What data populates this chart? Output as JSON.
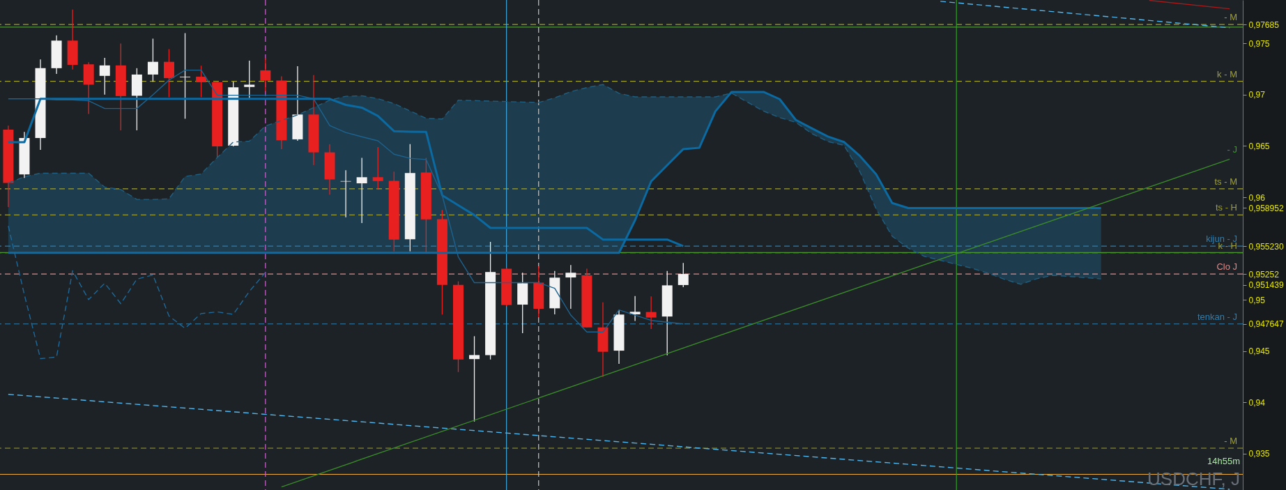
{
  "chart_data": {
    "type": "candlestick",
    "categories": [
      null,
      null,
      null,
      null,
      null,
      null,
      null,
      null,
      null,
      null,
      null,
      null,
      null,
      null,
      null,
      null,
      null,
      null,
      null,
      null,
      null,
      null,
      null,
      null,
      null,
      null,
      null,
      null,
      null,
      null,
      null,
      null,
      null,
      null,
      null,
      null,
      null,
      null,
      null,
      null,
      null,
      null,
      null,
      null,
      null,
      null,
      null,
      null,
      null,
      null,
      null,
      null,
      null,
      null,
      null,
      null,
      null,
      null,
      null,
      null,
      null,
      null,
      null,
      null,
      null,
      null,
      null,
      null,
      null,
      null,
      null,
      null,
      null,
      null,
      null,
      null,
      null
    ],
    "ohlc": [
      [
        0.96659,
        0.96699,
        0.95905,
        0.96139
      ],
      [
        0.96223,
        0.96637,
        0.96188,
        0.96578
      ],
      [
        0.96578,
        0.97345,
        0.96462,
        0.97259
      ],
      [
        0.97259,
        0.97579,
        0.97203,
        0.97528
      ],
      [
        0.97528,
        0.9783,
        0.97246,
        0.97291
      ],
      [
        0.97297,
        0.97318,
        0.96812,
        0.97098
      ],
      [
        0.97184,
        0.97359,
        0.97001,
        0.97286
      ],
      [
        0.97286,
        0.97499,
        0.96653,
        0.96987
      ],
      [
        0.9699,
        0.97259,
        0.96653,
        0.97197
      ],
      [
        0.97197,
        0.97547,
        0.97127,
        0.97321
      ],
      [
        0.97321,
        0.97445,
        0.96976,
        0.97162
      ],
      [
        0.9717,
        0.97601,
        0.96766,
        0.97176
      ],
      [
        0.97176,
        0.97283,
        0.96976,
        0.97122
      ],
      [
        0.97122,
        0.9713,
        0.9639,
        0.96497
      ],
      [
        0.96503,
        0.97127,
        0.96497,
        0.97073
      ],
      [
        0.97076,
        0.97332,
        0.96968,
        0.97098
      ],
      [
        0.97238,
        0.97359,
        0.97036,
        0.97138
      ],
      [
        0.97138,
        0.9718,
        0.9647,
        0.96556
      ],
      [
        0.96565,
        0.97278,
        0.96551,
        0.96807
      ],
      [
        0.96807,
        0.97192,
        0.96314,
        0.96438
      ],
      [
        0.96438,
        0.96516,
        0.96026,
        0.96174
      ],
      [
        0.96153,
        0.96263,
        0.95805,
        0.96158
      ],
      [
        0.96136,
        0.96384,
        0.95749,
        0.96196
      ],
      [
        0.96196,
        0.96489,
        0.9608,
        0.96158
      ],
      [
        0.9616,
        0.9625,
        0.95474,
        0.95587
      ],
      [
        0.9559,
        0.96519,
        0.95474,
        0.96236
      ],
      [
        0.96241,
        0.96384,
        0.9546,
        0.95784
      ],
      [
        0.95786,
        0.95876,
        0.94856,
        0.95146
      ],
      [
        0.95146,
        0.9518,
        0.94296,
        0.94418
      ],
      [
        0.94422,
        0.94645,
        0.93813,
        0.94461
      ],
      [
        0.94461,
        0.95565,
        0.94418,
        0.95271
      ],
      [
        0.95303,
        0.9531,
        0.9494,
        0.94949
      ],
      [
        0.94953,
        0.95264,
        0.94674,
        0.95162
      ],
      [
        0.95167,
        0.95327,
        0.94829,
        0.94912
      ],
      [
        0.94917,
        0.95282,
        0.94858,
        0.95216
      ],
      [
        0.95218,
        0.95339,
        0.94912,
        0.95264
      ],
      [
        0.95238,
        0.95303,
        0.94731,
        0.94731
      ],
      [
        0.94731,
        0.94976,
        0.94249,
        0.94493
      ],
      [
        0.94504,
        0.94901,
        0.94375,
        0.94856
      ],
      [
        0.94858,
        0.95036,
        0.94794,
        0.94883
      ],
      [
        0.94881,
        0.95033,
        0.94715,
        0.94827
      ],
      [
        0.94837,
        0.95282,
        0.94459,
        0.95141
      ],
      [
        0.95144,
        0.95359,
        0.95123,
        0.95252
      ],
      null,
      null,
      null,
      null,
      null,
      null,
      null,
      null,
      null,
      null,
      null,
      null,
      null,
      null,
      null,
      null,
      null,
      null,
      null,
      null,
      null,
      null,
      null,
      null,
      null,
      null,
      null,
      null,
      null,
      null,
      null,
      null,
      null,
      null
    ],
    "colors": [
      "#e8201f",
      "#f2f2f2",
      "#f2f2f2",
      "#f2f2f2",
      "#e8201f",
      "#e8201f",
      "#f2f2f2",
      "#e8201f",
      "#f2f2f2",
      "#f2f2f2",
      "#e8201f",
      "#f2f2f2",
      "#e8201f",
      "#e8201f",
      "#f2f2f2",
      "#f2f2f2",
      "#e8201f",
      "#e8201f",
      "#f2f2f2",
      "#e8201f",
      "#e8201f",
      "#f2f2f2",
      "#f2f2f2",
      "#e8201f",
      "#e8201f",
      "#f2f2f2",
      "#e8201f",
      "#e8201f",
      "#e8201f",
      "#f2f2f2",
      "#f2f2f2",
      "#e8201f",
      "#f2f2f2",
      "#e8201f",
      "#f2f2f2",
      "#f2f2f2",
      "#e8201f",
      "#e8201f",
      "#f2f2f2",
      "#f2f2f2",
      "#e8201f",
      "#f2f2f2",
      "#f2f2f2",
      null,
      null,
      null,
      null,
      null,
      null,
      null,
      null,
      null,
      null,
      null,
      null,
      null,
      null,
      null,
      null,
      null,
      null,
      null,
      null,
      null,
      null,
      null,
      null,
      null,
      null,
      null,
      null,
      null,
      null,
      null,
      null,
      null,
      null
    ],
    "series": [
      {
        "type": "line",
        "color": "#0b6aa2",
        "values": [
          0.96538,
          0.96538,
          0.9696,
          0.9696,
          0.9696,
          0.9696,
          0.9696,
          0.9696,
          0.9696,
          0.9696,
          0.9696,
          0.9696,
          0.9696,
          0.9696,
          0.9696,
          0.9696,
          0.9696,
          0.9696,
          0.9696,
          0.9696,
          0.9696,
          0.96901,
          0.96874,
          0.96793,
          0.96645,
          0.9664,
          0.96637,
          0.96019,
          0.95922,
          0.95826,
          0.95701,
          0.95701,
          0.95701,
          0.95701,
          0.95701,
          0.95701,
          0.95701,
          0.95588,
          0.95588,
          0.95588,
          0.95588,
          0.95588,
          0.95523,
          null,
          null,
          null,
          null,
          null,
          null,
          null,
          null,
          null,
          null,
          null,
          null,
          null,
          null,
          null,
          null,
          null,
          null,
          null,
          null,
          null,
          null,
          null,
          null,
          null,
          null,
          null,
          null,
          null,
          null,
          null,
          null,
          null,
          null
        ]
      },
      {
        "type": "line",
        "color": "#0b6aa2",
        "values": [
          0.95458,
          0.95458,
          0.95458,
          0.95458,
          0.95458,
          0.95458,
          0.95458,
          0.95458,
          0.95458,
          0.95458,
          0.95458,
          0.95458,
          0.95458,
          0.95458,
          0.95458,
          0.95458,
          0.95458,
          0.95458,
          0.95458,
          0.95458,
          0.95458,
          0.95458,
          0.95458,
          0.95458,
          0.95458,
          0.95458,
          0.95458,
          0.95458,
          0.95458,
          0.95458,
          0.95458,
          0.95458,
          0.95458,
          0.95458,
          0.95458,
          0.95458,
          0.95458,
          0.95458,
          0.95458,
          0.95776,
          0.96155,
          0.96313,
          0.9647,
          0.96483,
          0.96839,
          0.97027,
          0.97027,
          0.97027,
          0.96957,
          0.96755,
          0.96672,
          0.96592,
          0.96539,
          0.96402,
          0.96225,
          0.95944,
          0.95895,
          0.95895,
          0.95895,
          0.95895,
          0.95895,
          0.95895,
          0.95895,
          0.95895,
          0.95895,
          0.95895,
          0.95895,
          0.95895,
          0.95895,
          null,
          null,
          null,
          null,
          null,
          null,
          null,
          null
        ]
      },
      {
        "type": "line",
        "color": "#1f5f82",
        "line_style": "dashed",
        "values": [
          0.9614,
          0.962,
          0.96235,
          0.96235,
          0.96235,
          0.96235,
          0.96099,
          0.96076,
          0.95979,
          0.95979,
          0.95985,
          0.96203,
          0.96227,
          0.96387,
          0.96539,
          0.96547,
          0.96695,
          0.9675,
          0.96803,
          0.96875,
          0.96947,
          0.96985,
          0.9699,
          0.96962,
          0.96914,
          0.96842,
          0.9677,
          0.96763,
          0.96947,
          0.96943,
          0.96938,
          0.96934,
          0.96929,
          0.96924,
          0.9697,
          0.9703,
          0.9707,
          0.971,
          0.97014,
          0.96979,
          0.96979,
          0.96979,
          0.96979,
          0.96979,
          0.96979,
          0.97016,
          0.96927,
          0.9684,
          0.96777,
          0.96731,
          0.96621,
          0.96543,
          0.96507,
          0.96247,
          0.95887,
          0.9562,
          0.95504,
          0.95424,
          0.95385,
          0.95345,
          0.95306,
          0.95258,
          0.95199,
          0.95151,
          0.95206,
          0.95239,
          0.95228,
          0.95216,
          0.95204,
          null,
          null,
          null,
          null,
          null,
          null,
          null,
          null
        ],
        "lower": [
          0.95458,
          0.95458,
          0.95458,
          0.95458,
          0.95458,
          0.95458,
          0.95458,
          0.95458,
          0.95458,
          0.95458,
          0.95458,
          0.95458,
          0.95458,
          0.95458,
          0.95458,
          0.95458,
          0.95458,
          0.95458,
          0.95458,
          0.95458,
          0.95458,
          0.95458,
          0.95458,
          0.95458,
          0.95458,
          0.95458,
          0.95458,
          0.95458,
          0.95458,
          0.95458,
          0.95458,
          0.95458,
          0.95458,
          0.95458,
          0.95458,
          0.95458,
          0.95458,
          0.95458,
          0.95458,
          0.95776,
          0.96155,
          0.96313,
          0.9647,
          0.96483,
          0.96839,
          0.97027,
          0.97027,
          0.97027,
          0.96957,
          0.96755,
          0.96672,
          0.96592,
          0.96539,
          0.96402,
          0.96225,
          0.95944,
          0.95895,
          0.95895,
          0.95895,
          0.95895,
          0.95895,
          0.95895,
          0.95895,
          0.95895,
          0.95895,
          0.95895,
          0.95895,
          0.95895,
          0.95895,
          null,
          null,
          null,
          null,
          null,
          null,
          null,
          null
        ],
        "upper": [
          0.9614,
          0.962,
          0.96235,
          0.96235,
          0.96235,
          0.96235,
          0.96099,
          0.96076,
          0.95979,
          0.95979,
          0.95985,
          0.96203,
          0.96227,
          0.96387,
          0.96539,
          0.96547,
          0.96695,
          0.9675,
          0.96803,
          0.96875,
          0.96947,
          0.96985,
          0.9699,
          0.96962,
          0.96914,
          0.96842,
          0.9677,
          0.96763,
          0.96947,
          0.96943,
          0.96938,
          0.96934,
          0.96929,
          0.96924,
          0.9697,
          0.9703,
          0.9707,
          0.971,
          0.97014,
          0.96979,
          0.96979,
          0.96979,
          0.96979,
          0.96979,
          0.96979,
          0.97016,
          0.96927,
          0.9684,
          0.96777,
          0.96731,
          0.96621,
          0.96543,
          0.96507,
          0.96247,
          0.95887,
          0.9562,
          0.95504,
          0.95424,
          0.95385,
          0.95345,
          0.95306,
          0.95258,
          0.95199,
          0.95151,
          0.95206,
          0.95239,
          0.95228,
          0.95216,
          0.95204,
          null,
          null,
          null,
          null,
          null,
          null,
          null,
          null
        ]
      },
      {
        "type": "line",
        "color": "#1d6390",
        "values": [
          0.9696,
          0.9696,
          0.9696,
          0.9695,
          0.9695,
          0.96941,
          0.96866,
          0.96866,
          0.96866,
          0.97,
          0.97143,
          0.9724,
          0.9724,
          0.96995,
          0.96995,
          0.96995,
          0.96995,
          0.96995,
          0.96995,
          0.9696,
          0.96699,
          0.96632,
          0.9659,
          0.96551,
          0.9642,
          0.9638,
          0.96368,
          0.96019,
          0.95418,
          0.95167,
          0.95167,
          0.95167,
          0.95167,
          0.95167,
          0.95112,
          0.94851,
          0.94686,
          0.94686,
          0.94901,
          0.9485,
          0.94799,
          0.94782,
          0.94765,
          null,
          null,
          null,
          null,
          null,
          null,
          null,
          null,
          null,
          null,
          null,
          null,
          null,
          null,
          null,
          null,
          null,
          null,
          null,
          null,
          null,
          null,
          null,
          null,
          null,
          null,
          null,
          null,
          null,
          null,
          null,
          null,
          null,
          null
        ]
      },
      {
        "type": "line",
        "color": "#1d6a9c",
        "line_style": "dashed",
        "values": [
          0.9572,
          0.9505,
          0.94426,
          0.94442,
          0.95283,
          0.95002,
          0.95162,
          0.94962,
          0.95202,
          0.95242,
          0.94842,
          0.94722,
          0.94866,
          0.94882,
          0.94858,
          0.95082,
          0.95267,
          null,
          null,
          null,
          null,
          null,
          null,
          null,
          null,
          null,
          null,
          null,
          null,
          null,
          null,
          null,
          null,
          null,
          null,
          null,
          null,
          null,
          null,
          null,
          null,
          null,
          null,
          null,
          null,
          null,
          null,
          null,
          null,
          null,
          null,
          null,
          null,
          null,
          null,
          null,
          null,
          null,
          null,
          null,
          null,
          null,
          null,
          null,
          null,
          null,
          null,
          null,
          null,
          null,
          null,
          null,
          null,
          null,
          null,
          null,
          null
        ]
      },
      {
        "type": "line",
        "color": "#4fb8f0",
        "line_style": "dashed",
        "values": [
          0.94078,
          null,
          null,
          null,
          null,
          null,
          null,
          null,
          null,
          null,
          null,
          null,
          null,
          null,
          null,
          null,
          null,
          null,
          null,
          null,
          null,
          null,
          null,
          null,
          null,
          null,
          null,
          null,
          null,
          null,
          null,
          null,
          null,
          null,
          null,
          null,
          null,
          null,
          null,
          null,
          null,
          null,
          null,
          null,
          null,
          null,
          null,
          null,
          null,
          null,
          null,
          null,
          null,
          null,
          null,
          null,
          null,
          null,
          null,
          null,
          null,
          null,
          null,
          null,
          null,
          null,
          null,
          null,
          null,
          null,
          null,
          null,
          null,
          null,
          null,
          null,
          0.93152
        ]
      },
      {
        "type": "line",
        "color": "#4fb8f0",
        "line_style": "dashed",
        "values": [
          null,
          null,
          null,
          null,
          null,
          null,
          null,
          null,
          null,
          null,
          null,
          null,
          null,
          null,
          null,
          null,
          null,
          null,
          null,
          null,
          null,
          null,
          null,
          null,
          null,
          null,
          null,
          null,
          null,
          null,
          null,
          null,
          null,
          null,
          null,
          null,
          null,
          null,
          null,
          null,
          null,
          null,
          null,
          null,
          null,
          null,
          null,
          null,
          null,
          null,
          null,
          null,
          null,
          null,
          null,
          null,
          null,
          null,
          0.97911,
          null,
          null,
          null,
          null,
          null,
          null,
          null,
          null,
          null,
          null,
          null,
          null,
          null,
          null,
          null,
          null,
          null,
          0.97653
        ]
      },
      {
        "type": "line",
        "color": "#3a8a2a",
        "values": [
          null,
          null,
          null,
          null,
          null,
          null,
          null,
          null,
          null,
          null,
          null,
          null,
          null,
          null,
          null,
          null,
          null,
          0.93175,
          null,
          null,
          null,
          null,
          null,
          null,
          null,
          null,
          null,
          null,
          null,
          null,
          null,
          null,
          null,
          null,
          null,
          null,
          null,
          null,
          null,
          null,
          null,
          null,
          null,
          null,
          null,
          null,
          null,
          null,
          null,
          null,
          null,
          null,
          null,
          null,
          null,
          null,
          null,
          null,
          null,
          null,
          null,
          null,
          null,
          null,
          null,
          null,
          null,
          null,
          null,
          null,
          null,
          null,
          null,
          null,
          null,
          null,
          0.96371
        ]
      },
      {
        "type": "line",
        "color": "#b01818",
        "values": [
          null,
          null,
          null,
          null,
          null,
          null,
          null,
          null,
          null,
          null,
          null,
          null,
          null,
          null,
          null,
          null,
          null,
          null,
          null,
          null,
          null,
          null,
          null,
          null,
          null,
          null,
          null,
          null,
          null,
          null,
          null,
          null,
          null,
          null,
          null,
          null,
          null,
          null,
          null,
          null,
          null,
          null,
          null,
          null,
          null,
          null,
          null,
          null,
          null,
          null,
          null,
          null,
          null,
          null,
          null,
          null,
          null,
          null,
          null,
          null,
          null,
          null,
          null,
          null,
          null,
          null,
          null,
          null,
          null,
          null,
          null,
          0.9792,
          null,
          null,
          null,
          null,
          0.97838
        ]
      }
    ],
    "ylim": [
      0.93145,
      0.97924
    ],
    "yticks": [
      {
        "value": 0.935,
        "label": "0,935"
      },
      {
        "value": 0.94,
        "label": "0,94"
      },
      {
        "value": 0.945,
        "label": "0,945"
      },
      {
        "value": 0.947647,
        "label": "0,947647"
      },
      {
        "value": 0.95,
        "label": "0,95"
      },
      {
        "value": 0.951439,
        "label": "0,951439"
      },
      {
        "value": 0.95252,
        "label": "0,95252"
      },
      {
        "value": 0.95523,
        "label": "0,955230"
      },
      {
        "value": 0.958952,
        "label": "0,958952"
      },
      {
        "value": 0.96,
        "label": "0,96"
      },
      {
        "value": 0.965,
        "label": "0,965"
      },
      {
        "value": 0.97,
        "label": "0,97"
      },
      {
        "value": 0.975,
        "label": "0,975"
      },
      {
        "value": 0.97685,
        "label": "0,97685"
      }
    ],
    "tick_labels": "y",
    "grid": false,
    "ref_lines": [
      {
        "axis": "y",
        "value": 0.97685,
        "label": "- M",
        "color": "#a0a030",
        "line_style": "dashed"
      },
      {
        "axis": "y",
        "value": 0.9766,
        "color": "#4a9a2a",
        "line_style": "solid"
      },
      {
        "axis": "y",
        "value": 0.97131,
        "label": "k - M",
        "color": "#a0a030",
        "line_style": "dashed"
      },
      {
        "axis": "y",
        "value": 0.96083,
        "label": "ts - M",
        "color": "#a0a030",
        "line_style": "dashed"
      },
      {
        "axis": "y",
        "value": 0.95827,
        "label": "ts - H",
        "color": "#a0a030",
        "line_style": "dashed"
      },
      {
        "axis": "y",
        "value": 0.95523,
        "label": "kijun - J",
        "color": "#2f7fb0",
        "line_style": "dashed"
      },
      {
        "axis": "y",
        "value": 0.95459,
        "label": "k - H",
        "color": "#a0a030",
        "line_style": "dashed"
      },
      {
        "axis": "y",
        "value": 0.9546,
        "color": "#4a9a2a",
        "line_style": "solid"
      },
      {
        "axis": "y",
        "value": 0.95252,
        "label": "Clo J",
        "color": "#e08a8a",
        "line_style": "dashed"
      },
      {
        "axis": "y",
        "value": 0.947647,
        "label": "tenkan - J",
        "color": "#2f7fb0",
        "line_style": "dashed"
      },
      {
        "axis": "y",
        "value": 0.93553,
        "label": "- M",
        "color": "#a0a030",
        "line_style": "dashed"
      },
      {
        "axis": "y",
        "value": 0.93298,
        "color": "#f0b040",
        "line_style": "solid"
      }
    ],
    "annotations": [
      "USDCHF, J",
      "14h55m",
      "- J"
    ]
  }
}
